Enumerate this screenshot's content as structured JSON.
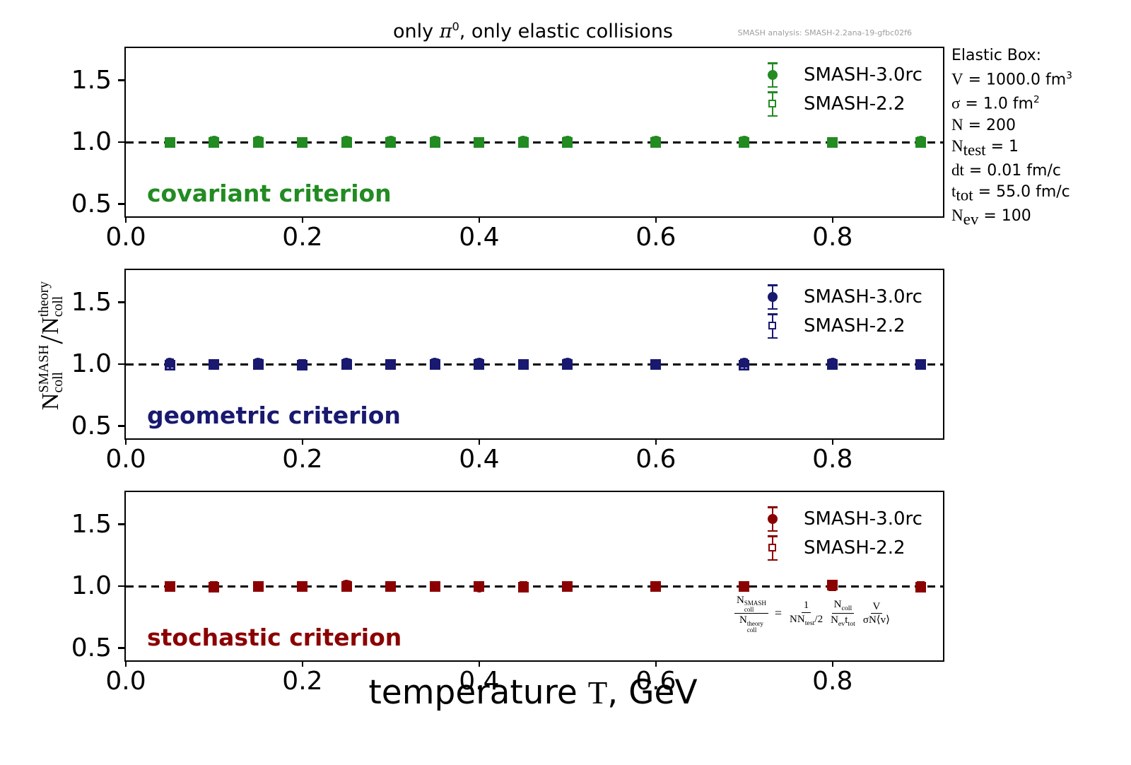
{
  "title": {
    "pre": "only ",
    "pi": "π",
    "pi_sup": "0",
    "post": ", only elastic collisions"
  },
  "watermark": "SMASH analysis: SMASH-2.2ana-19-gfbc02f6",
  "xlabel": {
    "pre": "temperature ",
    "T": "T",
    "post": ", GeV"
  },
  "ylabel": {
    "n1": "N",
    "sup1": "SMASH",
    "sub1": "coll",
    "slash": "/",
    "n2": "N",
    "sup2": "theory",
    "sub2": "coll"
  },
  "info_box": {
    "lines": [
      {
        "v": "",
        "sub": "",
        "rest": "Elastic Box:",
        "sup": ""
      },
      {
        "v": "V",
        "sub": "",
        "rest": " = 1000.0 fm",
        "sup": "3"
      },
      {
        "v": "σ",
        "sub": "",
        "rest": " = 1.0 fm",
        "sup": "2"
      },
      {
        "v": "N",
        "sub": "",
        "rest": " = 200",
        "sup": ""
      },
      {
        "v": "N",
        "sub": "test",
        "rest": " = 1",
        "sup": ""
      },
      {
        "v": "dt",
        "sub": "",
        "rest": " = 0.01 fm/c",
        "sup": ""
      },
      {
        "v": "t",
        "sub": "tot",
        "rest": " = 55.0 fm/c",
        "sup": ""
      },
      {
        "v": "N",
        "sub": "ev",
        "rest": " = 100",
        "sup": ""
      }
    ]
  },
  "formula": {
    "lhs_num_base": "N",
    "lhs_num_sup": "SMASH",
    "lhs_num_sub": "coll",
    "lhs_den_base": "N",
    "lhs_den_sup": "theory",
    "lhs_den_sub": "coll",
    "eq": "=",
    "f1_num": "1",
    "f1_den_a": "NN",
    "f1_den_sub": "test",
    "f1_den_b": "/2",
    "f2_num_a": "N",
    "f2_num_sub": "coll",
    "f2_den_a": "N",
    "f2_den_sub": "ev",
    "f2_den_b": "t",
    "f2_den_sub2": "tot",
    "f3_num": "V",
    "f3_den_a": "σN",
    "f3_den_b": "⟨v⟩"
  },
  "chart_data": {
    "type": "scatter",
    "x": [
      0.05,
      0.1,
      0.15,
      0.2,
      0.25,
      0.3,
      0.35,
      0.4,
      0.45,
      0.5,
      0.6,
      0.7,
      0.8,
      0.9
    ],
    "xlim": [
      0.0,
      0.925
    ],
    "ylim": [
      0.4,
      1.76
    ],
    "xticks": [
      0.0,
      0.2,
      0.4,
      0.6,
      0.8
    ],
    "xtick_labels": [
      "0.0",
      "0.2",
      "0.4",
      "0.6",
      "0.8"
    ],
    "yticks": [
      0.5,
      1.0,
      1.5
    ],
    "ytick_labels": [
      "0.5",
      "1.0",
      "1.5"
    ],
    "reference_line_y": 1.0,
    "y_err": 0.015,
    "grid": false,
    "legend_position": "upper-right",
    "panels": [
      {
        "label": "covariant criterion",
        "color": "#228B22",
        "series": [
          {
            "name": "SMASH-3.0rc",
            "marker": "filled-circle",
            "values": [
              1.0,
              1.01,
              1.01,
              1.0,
              1.01,
              1.01,
              1.01,
              1.0,
              1.01,
              1.01,
              1.01,
              1.01,
              1.0,
              1.01
            ]
          },
          {
            "name": "SMASH-2.2",
            "marker": "open-square",
            "values": [
              1.0,
              1.0,
              1.0,
              1.0,
              1.0,
              1.0,
              1.0,
              1.0,
              1.0,
              1.0,
              1.0,
              1.0,
              1.0,
              1.0
            ]
          }
        ]
      },
      {
        "label": "geometric criterion",
        "color": "#191970",
        "series": [
          {
            "name": "SMASH-3.0rc",
            "marker": "filled-circle",
            "values": [
              1.01,
              1.0,
              1.01,
              1.0,
              1.01,
              1.0,
              1.01,
              1.01,
              1.0,
              1.01,
              1.0,
              1.01,
              1.01,
              1.0
            ]
          },
          {
            "name": "SMASH-2.2",
            "marker": "open-square",
            "values": [
              0.99,
              1.0,
              1.0,
              0.99,
              1.0,
              1.0,
              1.0,
              1.0,
              1.0,
              1.0,
              1.0,
              0.99,
              1.0,
              1.0
            ]
          }
        ]
      },
      {
        "label": "stochastic criterion",
        "color": "#8B0000",
        "series": [
          {
            "name": "SMASH-3.0rc",
            "marker": "filled-circle",
            "values": [
              1.0,
              1.0,
              1.0,
              1.0,
              1.01,
              1.0,
              1.0,
              0.99,
              1.0,
              1.0,
              1.0,
              1.0,
              1.0,
              1.0
            ]
          },
          {
            "name": "SMASH-2.2",
            "marker": "open-square",
            "values": [
              1.0,
              0.99,
              1.0,
              1.0,
              1.0,
              1.0,
              1.0,
              1.0,
              0.99,
              1.0,
              1.0,
              1.0,
              1.01,
              0.99
            ]
          }
        ]
      }
    ]
  }
}
